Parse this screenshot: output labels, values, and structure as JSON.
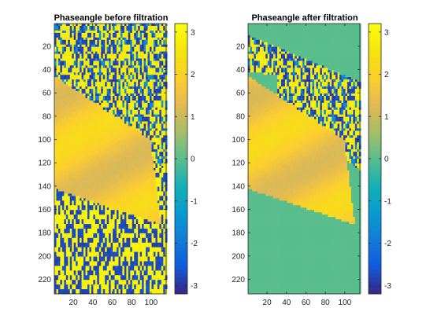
{
  "chart_data": [
    {
      "type": "heatmap",
      "title": "Phaseangle before filtration",
      "filtered": false,
      "xlim": [
        0.5,
        115.5
      ],
      "ylim": [
        0.5,
        232.5
      ],
      "y_reversed": true,
      "xticks": [
        20,
        40,
        60,
        80,
        100
      ],
      "yticks": [
        20,
        40,
        60,
        80,
        100,
        120,
        140,
        160,
        180,
        200,
        220
      ],
      "colorbar": {
        "range": [
          -3.2,
          3.2
        ],
        "ticks": [
          -3,
          -2,
          -1,
          0,
          1,
          2,
          3
        ]
      },
      "colormap": "parula",
      "regions": [
        {
          "name": "top noise band",
          "rows": [
            1,
            55
          ],
          "value": "noise (±π)"
        },
        {
          "name": "main lobe",
          "rows": [
            55,
            140
          ],
          "value": 1.9
        },
        {
          "name": "lower lobe",
          "rows": [
            105,
            160
          ],
          "value": 2.2
        },
        {
          "name": "bottom noise",
          "rows": [
            150,
            232
          ],
          "value": "noise (±π)"
        }
      ]
    },
    {
      "type": "heatmap",
      "title": "Phaseangle after filtration",
      "filtered": true,
      "xlim": [
        0.5,
        115.5
      ],
      "ylim": [
        0.5,
        232.5
      ],
      "y_reversed": true,
      "xticks": [
        20,
        40,
        60,
        80,
        100
      ],
      "yticks": [
        20,
        40,
        60,
        80,
        100,
        120,
        140,
        160,
        180,
        200,
        220
      ],
      "colorbar": {
        "range": [
          -3.2,
          3.2
        ],
        "ticks": [
          -3,
          -2,
          -1,
          0,
          1,
          2,
          3
        ]
      },
      "colormap": "parula",
      "background_value": 0,
      "regions": [
        {
          "name": "diagonal noise band",
          "rows": [
            1,
            55
          ],
          "value": "noise (±π)"
        },
        {
          "name": "main lobe",
          "rows": [
            55,
            140
          ],
          "value": 1.9
        },
        {
          "name": "lower lobe",
          "rows": [
            105,
            160
          ],
          "value": 2.2
        }
      ]
    }
  ]
}
